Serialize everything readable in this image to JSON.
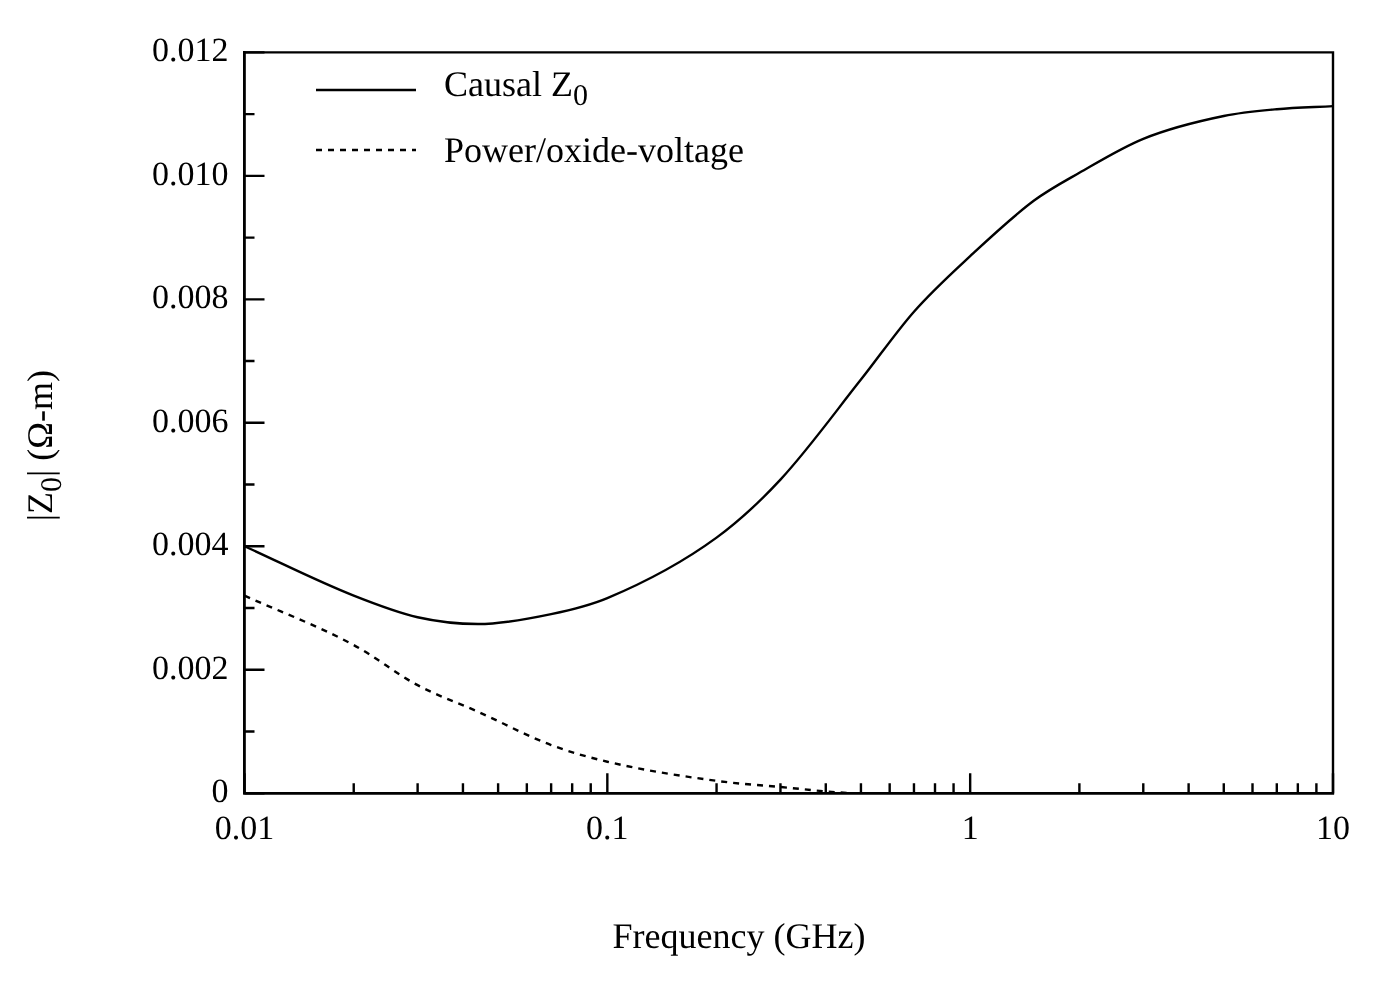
{
  "chart_data": {
    "type": "line",
    "xlabel": "Frequency (GHz)",
    "ylabel": "|Z$_{0}$| (Ω-m)",
    "log": "x",
    "xlim": [
      0.01,
      10
    ],
    "ylim": [
      0,
      0.012
    ],
    "xticks": [
      0.01,
      {
        "value": 0.02,
        "label": null
      },
      {
        "value": 0.03,
        "label": null
      },
      {
        "value": 0.04,
        "label": null
      },
      {
        "value": 0.05,
        "label": null
      },
      {
        "value": 0.06,
        "label": null
      },
      {
        "value": 0.07,
        "label": null
      },
      {
        "value": 0.08,
        "label": null
      },
      {
        "value": 0.09,
        "label": null
      },
      0.1,
      {
        "value": 0.2,
        "label": null
      },
      {
        "value": 0.3,
        "label": null
      },
      {
        "value": 0.4,
        "label": null
      },
      {
        "value": 0.5,
        "label": null
      },
      {
        "value": 0.6,
        "label": null
      },
      {
        "value": 0.7,
        "label": null
      },
      {
        "value": 0.8,
        "label": null
      },
      {
        "value": 0.9,
        "label": null
      },
      1,
      {
        "value": 2,
        "label": null
      },
      {
        "value": 3,
        "label": null
      },
      {
        "value": 4,
        "label": null
      },
      {
        "value": 5,
        "label": null
      },
      {
        "value": 6,
        "label": null
      },
      {
        "value": 7,
        "label": null
      },
      {
        "value": 8,
        "label": null
      },
      {
        "value": 9,
        "label": null
      },
      10
    ],
    "yticks": [
      0,
      {
        "value": 0.001,
        "label": null
      },
      0.002,
      {
        "value": 0.003,
        "label": null
      },
      0.004,
      {
        "value": 0.005,
        "label": null
      },
      0.006,
      {
        "value": 0.007,
        "label": null
      },
      0.008,
      {
        "value": 0.009,
        "label": null
      },
      {
        "value": 0.01,
        "label": "0.010"
      },
      {
        "value": 0.011,
        "label": null
      },
      0.012
    ],
    "legend": "top left",
    "grid": false,
    "marker": "none",
    "series": [
      {
        "name": "Causal Z$_{0}$",
        "color": "#000000",
        "line_style": "solid",
        "x": [
          0.01,
          0.02,
          0.03,
          0.044,
          0.07,
          0.1,
          0.2,
          0.3,
          0.5,
          0.7,
          1,
          1.5,
          2,
          3,
          5,
          7,
          10
        ],
        "values": [
          0.004,
          0.0032,
          0.00285,
          0.00274,
          0.0029,
          0.00316,
          0.00414,
          0.00508,
          0.0067,
          0.0078,
          0.0087,
          0.0096,
          0.01005,
          0.0106,
          0.01097,
          0.01108,
          0.01113
        ]
      },
      {
        "name": "Power/oxide-voltage",
        "color": "#000000",
        "line_style": "dashed",
        "x": [
          0.01,
          0.02,
          0.03,
          0.044,
          0.07,
          0.1,
          0.2,
          0.3,
          0.5,
          1,
          2,
          10
        ],
        "values": [
          0.0032,
          0.0024,
          0.00175,
          0.00132,
          0.00078,
          0.00051,
          0.0002,
          0.0001,
          0,
          0,
          0,
          0
        ]
      }
    ]
  }
}
